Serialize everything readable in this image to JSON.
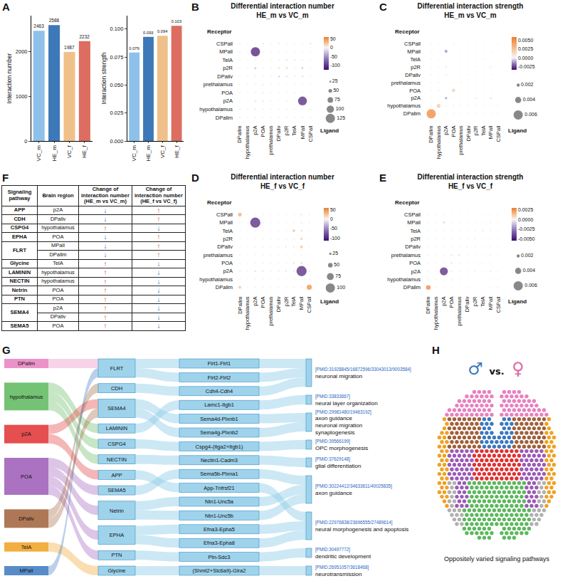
{
  "chart_data": [
    {
      "panel": "A",
      "type": "bar",
      "y_label": "Interaction number",
      "categories": [
        "VC_m",
        "HE_m",
        "VC_f",
        "HE_f"
      ],
      "values": [
        2463,
        2588,
        1987,
        2232
      ],
      "colors": [
        "#8ec1ea",
        "#3d78b8",
        "#f0c08a",
        "#dc6d60"
      ],
      "ylim": [
        0,
        2800
      ],
      "yticks": [
        0,
        1000,
        2000
      ],
      "data_labels": true
    },
    {
      "type": "bar",
      "y_label": "Interaction strength",
      "categories": [
        "VC_m",
        "HE_m",
        "VC_f",
        "HE_f"
      ],
      "values": [
        0.079,
        0.093,
        0.094,
        0.103
      ],
      "colors": [
        "#8ec1ea",
        "#3d78b8",
        "#f0c08a",
        "#dc6d60"
      ],
      "ylim": [
        0,
        0.112
      ],
      "yticks": [
        {
          "value": 0,
          "label": "0.000"
        },
        0.025,
        {
          "value": 0.05,
          "label": "0.050"
        },
        0.075,
        {
          "value": 0.1,
          "label": "0.100"
        }
      ],
      "data_labels": true
    },
    {
      "panel": "B",
      "type": "bubble",
      "title": "Differential interaction number",
      "subtitle": "HE_m vs VC_m",
      "x_label": "Ligand",
      "y_label": "Receptor",
      "x": [
        "DPallm",
        "hypothalamus",
        "p2A",
        "POA",
        "prethalamus",
        "DPallv",
        "p2R",
        "TelA",
        "MPall",
        "CSPall"
      ],
      "y": [
        "DPallm",
        "hypothalamus",
        "p2A",
        "POA",
        "prethalamus",
        "DPallv",
        "p2R",
        "TelA",
        "MPall",
        "CSPall"
      ],
      "values": [
        [
          8,
          5,
          6,
          4,
          3,
          6,
          5,
          4,
          6,
          5
        ],
        [
          6,
          5,
          8,
          6,
          4,
          5,
          6,
          3,
          5,
          6
        ],
        [
          3,
          2,
          -15,
          -10,
          -5,
          2,
          -8,
          3,
          -120,
          4
        ],
        [
          4,
          3,
          5,
          6,
          3,
          4,
          2,
          5,
          3,
          2
        ],
        [
          3,
          5,
          4,
          10,
          4,
          3,
          2,
          4,
          6,
          3
        ],
        [
          2,
          3,
          -5,
          4,
          2,
          -25,
          -20,
          -8,
          20,
          3
        ],
        [
          2,
          3,
          -30,
          5,
          3,
          22,
          25,
          6,
          -28,
          4
        ],
        [
          3,
          2,
          4,
          3,
          2,
          5,
          15,
          10,
          6,
          3
        ],
        [
          3,
          2,
          -125,
          4,
          3,
          3,
          2,
          5,
          4,
          3
        ],
        [
          5,
          4,
          3,
          15,
          3,
          -10,
          5,
          4,
          6,
          18
        ]
      ],
      "color_range": [
        -125,
        60
      ],
      "color_ticks": [
        50,
        0,
        -50,
        -100
      ],
      "size_legend": [
        25,
        50,
        75,
        100,
        125
      ]
    },
    {
      "panel": "C",
      "type": "bubble",
      "title": "Differential interaction strength",
      "subtitle": "HE_m vs VC_m",
      "x_label": "Ligand",
      "y_label": "Receptor",
      "x": [
        "DPallm",
        "hypothalamus",
        "p2A",
        "POA",
        "prethalamus",
        "DPallv",
        "p2R",
        "TelA",
        "MPall",
        "CSPall"
      ],
      "y": [
        "DPallm",
        "hypothalamus",
        "p2A",
        "POA",
        "prethalamus",
        "DPallv",
        "p2R",
        "TelA",
        "MPall",
        "CSPall"
      ],
      "values": [
        [
          0.006,
          0.0003,
          0.0002,
          0.0004,
          0.0002,
          0.0003,
          0.0001,
          0.0002,
          0.0003,
          0.0004
        ],
        [
          0.0004,
          0.0025,
          0.0003,
          0.0005,
          0.0004,
          0.0002,
          0.0002,
          0.0001,
          0.0002,
          0.0003
        ],
        [
          0.0002,
          0.0002,
          -0.0015,
          0.0003,
          0.0002,
          0.0001,
          -0.0003,
          0.0001,
          -0.0006,
          0.0002
        ],
        [
          0.0003,
          0.0004,
          0.0002,
          0.0022,
          0.0003,
          0.0002,
          0.0001,
          0.0002,
          0.0002,
          0.0001
        ],
        [
          0.0002,
          0.0003,
          0.0002,
          0.0003,
          0.0006,
          0.0001,
          0.0001,
          0.0001,
          0.0002,
          0.0001
        ],
        [
          0.0003,
          0.0001,
          -0.0002,
          0.0002,
          0.0001,
          0.0004,
          0.0002,
          0.0001,
          0.0003,
          0.0002
        ],
        [
          0.0001,
          0.0002,
          -0.0003,
          0.0002,
          0.0001,
          0.0002,
          0.0003,
          0.0001,
          -0.0002,
          0.0001
        ],
        [
          0.0002,
          0.0001,
          0.0001,
          0.0002,
          0.0001,
          0.0001,
          0.0002,
          0.0004,
          0.0001,
          0.0001
        ],
        [
          0.0002,
          0.0001,
          -0.0018,
          0.0002,
          0.0001,
          0.0001,
          0.0001,
          0.0001,
          0.0003,
          0.0001
        ],
        [
          0.0003,
          0.0002,
          0.0001,
          0.0005,
          0.0002,
          0.0001,
          0.0001,
          0.0002,
          0.0002,
          0.0004
        ]
      ],
      "color_range": [
        -0.0035,
        0.006
      ],
      "color_ticks": [
        {
          "value": 0.005,
          "label": "0.0050"
        },
        0.0025,
        {
          "value": 0,
          "label": "0.0000"
        },
        -0.0025
      ],
      "size_legend": [
        0.002,
        0.004,
        0.006
      ]
    },
    {
      "panel": "D",
      "type": "bubble",
      "title": "Differential interaction number",
      "subtitle": "HE_f vs VC_f",
      "x_label": "Ligand",
      "y_label": "Receptor",
      "x": [
        "DPallm",
        "hypothalamus",
        "p2A",
        "POA",
        "prethalamus",
        "DPallv",
        "p2R",
        "TelA",
        "MPall",
        "CSPall"
      ],
      "y": [
        "DPallm",
        "hypothalamus",
        "p2A",
        "POA",
        "prethalamus",
        "DPallv",
        "p2R",
        "TelA",
        "MPall",
        "CSPall"
      ],
      "values": [
        [
          30,
          3,
          4,
          5,
          2,
          4,
          3,
          6,
          5,
          55
        ],
        [
          3,
          2,
          3,
          4,
          2,
          3,
          2,
          3,
          4,
          2
        ],
        [
          -8,
          -5,
          -15,
          -10,
          -6,
          -8,
          -12,
          -10,
          -110,
          -5
        ],
        [
          3,
          2,
          4,
          5,
          3,
          4,
          3,
          15,
          20,
          3
        ],
        [
          2,
          2,
          3,
          3,
          2,
          2,
          2,
          3,
          4,
          2
        ],
        [
          3,
          2,
          4,
          5,
          3,
          6,
          10,
          8,
          30,
          3
        ],
        [
          3,
          2,
          4,
          4,
          3,
          5,
          6,
          5,
          25,
          3
        ],
        [
          2,
          2,
          3,
          3,
          2,
          4,
          5,
          30,
          20,
          3
        ],
        [
          3,
          2,
          -110,
          4,
          3,
          4,
          3,
          5,
          8,
          4
        ],
        [
          40,
          2,
          3,
          4,
          2,
          3,
          3,
          4,
          15,
          5
        ]
      ],
      "color_range": [
        -115,
        60
      ],
      "color_ticks": [
        50,
        0,
        -50,
        -100
      ],
      "size_legend": [
        25,
        50,
        75,
        100
      ]
    },
    {
      "panel": "E",
      "type": "bubble",
      "title": "Differential interaction strength",
      "subtitle": "HE_f vs VC_f",
      "x_label": "Ligand",
      "y_label": "Receptor",
      "x": [
        "DPallm",
        "hypothalamus",
        "p2A",
        "POA",
        "prethalamus",
        "DPallv",
        "p2R",
        "TelA",
        "MPall",
        "CSPall"
      ],
      "y": [
        "DPallm",
        "hypothalamus",
        "p2A",
        "POA",
        "prethalamus",
        "DPallv",
        "p2R",
        "TelA",
        "MPall",
        "CSPall"
      ],
      "values": [
        [
          0.003,
          0.0002,
          0.0001,
          0.0002,
          0.0001,
          0.0002,
          0.0001,
          0.0001,
          0.0002,
          0.0003
        ],
        [
          0.0002,
          0.0003,
          0.0001,
          0.0002,
          0.0001,
          0.0001,
          0.0001,
          0.0001,
          0.0001,
          0.0001
        ],
        [
          -0.0002,
          -0.0001,
          -0.0052,
          -0.0003,
          -0.0002,
          -0.0001,
          -0.0002,
          -0.0001,
          -0.0004,
          -0.0001
        ],
        [
          0.0002,
          0.0001,
          0.0001,
          0.0008,
          0.0002,
          0.0001,
          0.0001,
          0.0002,
          0.0002,
          0.0001
        ],
        [
          0.0002,
          0.0001,
          0.0002,
          0.0006,
          0.0008,
          0.0001,
          0.0001,
          0.0001,
          0.0002,
          0.0001
        ],
        [
          0.0001,
          0.0001,
          0.0001,
          0.0001,
          0.0001,
          0.0003,
          0.0002,
          0.0001,
          0.0002,
          0.0001
        ],
        [
          0.0001,
          0.0001,
          0.0001,
          0.0001,
          0.0001,
          0.0002,
          0.0003,
          0.0001,
          0.0002,
          0.0001
        ],
        [
          0.0001,
          0.0001,
          0.0001,
          0.0001,
          0.0001,
          0.0001,
          0.0002,
          0.0004,
          0.0002,
          0.0001
        ],
        [
          0.0001,
          0.0001,
          -0.0012,
          0.0001,
          0.0001,
          0.0001,
          0.0001,
          0.0001,
          0.0002,
          0.0001
        ],
        [
          0.0002,
          0.0001,
          0.0001,
          0.0001,
          0.0001,
          0.0001,
          0.0001,
          0.0001,
          0.0002,
          0.0002
        ]
      ],
      "color_range": [
        -0.0055,
        0.003
      ],
      "color_ticks": [
        0.0025,
        {
          "value": 0,
          "label": "0.0000"
        },
        -0.0025,
        {
          "value": -0.005,
          "label": "-0.0050"
        }
      ],
      "size_legend": [
        0.002,
        0.004,
        0.006
      ]
    }
  ],
  "table": {
    "panel": "F",
    "header": [
      "Signaling pathway",
      "Brain region",
      "Change of interaction number (HE_m vs VC_m)",
      "Change of interaction number (HE_f vs VC_f)"
    ],
    "rows": [
      [
        "APP",
        "p2A",
        "↓",
        "↑"
      ],
      [
        "CDH",
        "DPallv",
        "↓",
        "↑"
      ],
      [
        "CSPG4",
        "hypothalamus",
        "↑",
        "↓"
      ],
      [
        "EPHA",
        "POA",
        "↓",
        "↑"
      ],
      [
        "FLRT",
        "MPall",
        "↓",
        "↑"
      ],
      [
        "FLRT",
        "DPallm",
        "↓",
        "↑"
      ],
      [
        "Glycine",
        "TelA",
        "↑",
        "↓"
      ],
      [
        "LAMININ",
        "hypothalamus",
        "↑",
        "↓"
      ],
      [
        "NECTIN",
        "hypothalamus",
        "↑",
        "↓"
      ],
      [
        "Netrin",
        "POA",
        "↑",
        "↓"
      ],
      [
        "PTN",
        "POA",
        "↑",
        "↓"
      ],
      [
        "SEMA4",
        "p2A",
        "↑",
        "↓"
      ],
      [
        "SEMA4",
        "DPallv",
        "↑",
        "↓"
      ],
      [
        "SEMA5",
        "POA",
        "↑",
        "↓"
      ]
    ],
    "arrow_colors": {
      "↑": "#d62020",
      "↓": "#2b5fb5"
    }
  },
  "diagram": {
    "panel": "G",
    "regions": [
      {
        "label": "DPallm",
        "color": "#e880c0",
        "pathways": [
          "FLRT"
        ]
      },
      {
        "label": "hypothalamus",
        "color": "#5cb85c",
        "pathways": [
          "CSPG4",
          "LAMININ",
          "NECTIN"
        ]
      },
      {
        "label": "p2A",
        "color": "#e03030",
        "pathways": [
          "APP",
          "SEMA4"
        ]
      },
      {
        "label": "POA",
        "color": "#9b59b6",
        "pathways": [
          "EPHA",
          "Netrin",
          "PTN",
          "SEMA5"
        ]
      },
      {
        "label": "DPallv",
        "color": "#a0603a",
        "pathways": [
          "CDH",
          "SEMA4"
        ]
      },
      {
        "label": "TelA",
        "color": "#f0a020",
        "pathways": [
          "Glycine"
        ]
      },
      {
        "label": "MPall",
        "color": "#3a78c0",
        "pathways": [
          "FLRT"
        ]
      }
    ],
    "pathways": [
      {
        "label": "FLRT",
        "pairs": [
          "Flrt1-Flrt1",
          "Flrt2-Flrt2"
        ]
      },
      {
        "label": "CDH",
        "pairs": [
          "Cdh4-Cdh4"
        ]
      },
      {
        "label": "SEMA4",
        "pairs": [
          "Sema4d-Plxnb1",
          "Sema4g-Plxnb2"
        ]
      },
      {
        "label": "LAMININ",
        "pairs": [
          "Lamc1-Itgb1"
        ]
      },
      {
        "label": "CSPG4",
        "pairs": [
          "Cspg4-(Itga2+Itgb1)"
        ]
      },
      {
        "label": "NECTIN",
        "pairs": [
          "Nectin1-Cadm3"
        ]
      },
      {
        "label": "APP",
        "pairs": [
          "App-Tnfrsf21"
        ]
      },
      {
        "label": "SEMA5",
        "pairs": [
          "Sema5b-Plxna1"
        ]
      },
      {
        "label": "Netrin",
        "pairs": [
          "Ntn1-Unc5a",
          "Ntn1-Unc5b"
        ]
      },
      {
        "label": "EPHA",
        "pairs": [
          "Efna3-Epha5",
          "Efna3-Epha8"
        ]
      },
      {
        "label": "PTN",
        "pairs": [
          "Ptn-Sdc3"
        ]
      },
      {
        "label": "Glycine",
        "pairs": [
          "(Shmt2+Slc6a9)-Glra2"
        ]
      }
    ],
    "pairs": [
      "Flrt1-Flrt1",
      "Flrt2-Flrt2",
      "Cdh4-Cdh4",
      "Lamc1-Itgb1",
      "Sema4d-Plxnb1",
      "Sema4g-Plxnb2",
      "Cspg4-(Itga2+Itgb1)",
      "Nectin1-Cadm3",
      "Sema5b-Plxna1",
      "App-Tnfrsf21",
      "Ntn1-Unc5a",
      "Ntn1-Unc5b",
      "Efna3-Epha5",
      "Efna3-Epha8",
      "Ptn-Sdc3",
      "(Shmt2+Slc6a9)-Glra2"
    ],
    "functions": [
      {
        "pmid": "[PMID:31928845/16872596/33043013/9003584]",
        "label": [
          "neuronal migration"
        ],
        "pairs": [
          "Flrt1-Flrt1",
          "Flrt2-Flrt2",
          "Cdh4-Cdh4"
        ]
      },
      {
        "pmid": "[PMID:33833667]",
        "label": [
          "neural layer organization"
        ],
        "pairs": [
          "Lamc1-Itgb1"
        ]
      },
      {
        "pmid": "[PMID:29981480/19463192]",
        "label": [
          "axon guidance",
          "neuronal migration",
          "synaptogenesis"
        ],
        "pairs": [
          "Sema4d-Plxnb1",
          "Sema4g-Plxnb2"
        ]
      },
      {
        "pmid": "[PMID:39566199]",
        "label": [
          "OPC morphogenesis"
        ],
        "pairs": [
          "Cspg4-(Itga2+Itgb1)"
        ]
      },
      {
        "pmid": "[PMID:37629148]",
        "label": [
          "glial differentiation"
        ],
        "pairs": [
          "Nectin1-Cadm3"
        ]
      },
      {
        "pmid": "[PMID:30224412/34633611/40025835]",
        "label": [
          "axon guidance"
        ],
        "pairs": [
          "Sema5b-Plxna1",
          "Ntn1-Unc5a",
          "Ntn1-Unc5b"
        ]
      },
      {
        "pmid": "[PMID:22976838/23696555/27489614]",
        "label": [
          "neural morphogenesis and apoptosis"
        ],
        "pairs": [
          "App-Tnfrsf21",
          "Efna3-Epha5",
          "Efna3-Epha8"
        ]
      },
      {
        "pmid": "[PMID:30497772]",
        "label": [
          "dendritic development"
        ],
        "pairs": [
          "Ptn-Sdc3"
        ]
      },
      {
        "pmid": "[PMID:26951057/3618468]",
        "label": [
          "neurotransmission"
        ],
        "pairs": [
          "(Shmt2+Slc6a9)-Glra2"
        ]
      }
    ]
  },
  "map": {
    "panel": "H",
    "symbols": [
      "♂",
      "vs.",
      "♀"
    ],
    "symbol_colors": [
      "#3a78c0",
      "#111111",
      "#e06aa0"
    ],
    "caption": "Oppositely varied signaling pathways"
  }
}
